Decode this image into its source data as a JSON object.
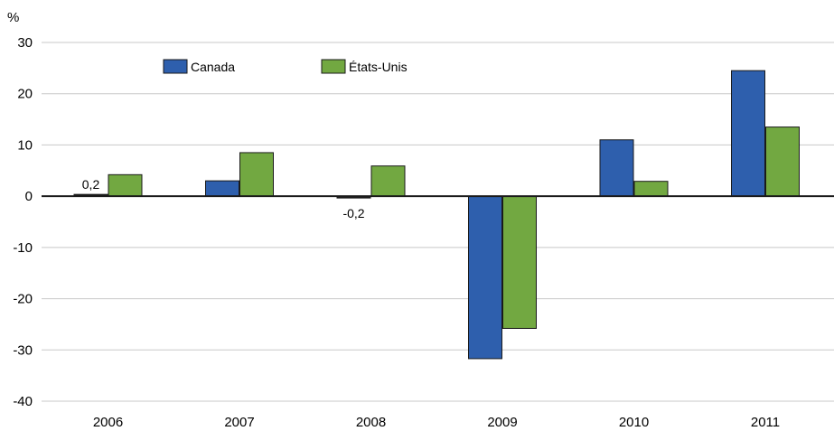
{
  "chart_data": {
    "type": "bar",
    "unit_label": "%",
    "categories": [
      "2006",
      "2007",
      "2008",
      "2009",
      "2010",
      "2011"
    ],
    "series": [
      {
        "name": "Canada",
        "color": "#2e5fad",
        "values": [
          0.2,
          3.0,
          -0.2,
          -31.7,
          11.0,
          24.5
        ]
      },
      {
        "name": "États-Unis",
        "color": "#72a841",
        "values": [
          4.2,
          8.5,
          5.9,
          -25.8,
          2.9,
          13.5
        ]
      }
    ],
    "ylim": [
      -40,
      30
    ],
    "yticks": [
      -40,
      -30,
      -20,
      -10,
      0,
      10,
      20,
      30
    ],
    "ytick_labels": [
      "-40",
      "-30",
      "-20",
      "-10",
      "0",
      "10",
      "20",
      "30"
    ],
    "data_labels": [
      {
        "series": 0,
        "index": 0,
        "text": "0,2"
      },
      {
        "series": 0,
        "index": 2,
        "text": "-0,2"
      }
    ],
    "grid": true,
    "legend_position": "top-left"
  }
}
